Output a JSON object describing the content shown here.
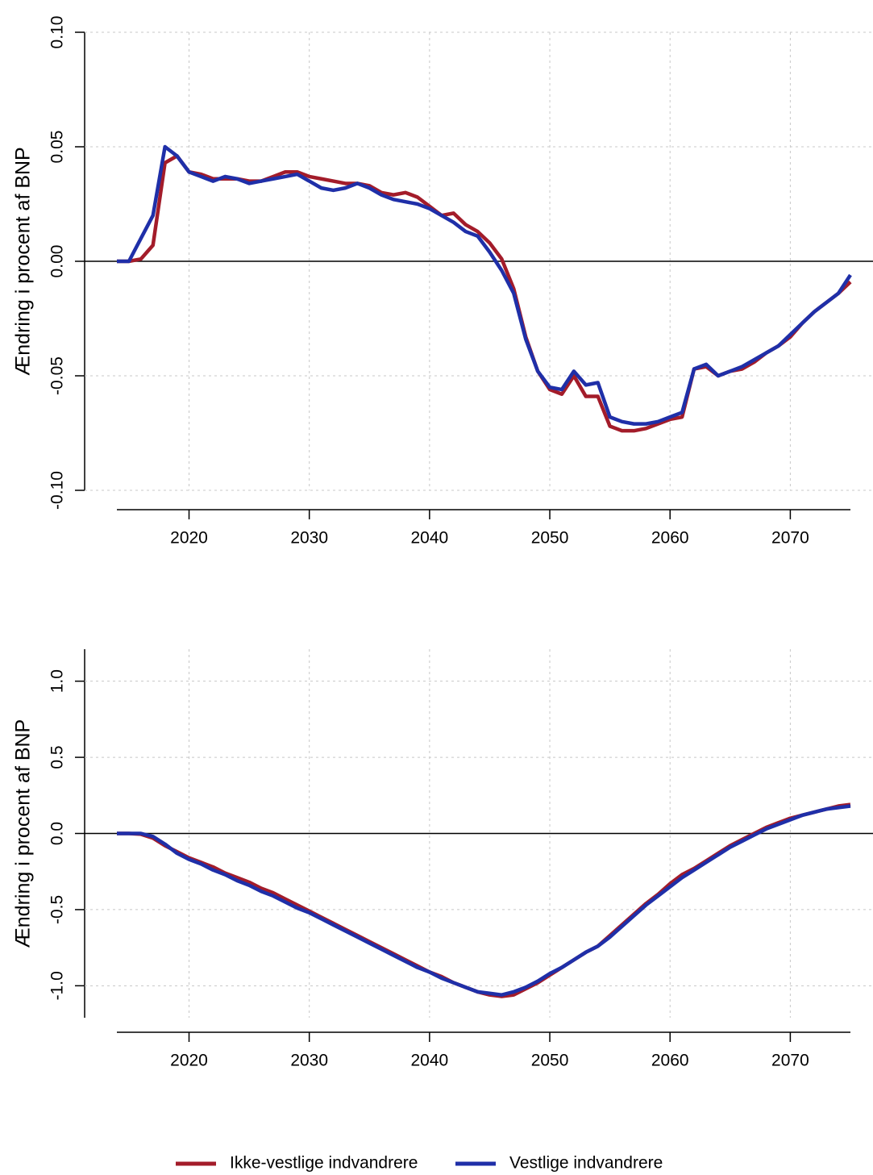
{
  "chart_data": [
    {
      "type": "line",
      "ylabel": "Ændring i procent af BNP",
      "grid": true,
      "hline": 0,
      "xlim": [
        2014,
        2075
      ],
      "xticks": [
        2020,
        2030,
        2040,
        2050,
        2060,
        2070
      ],
      "ylim": [
        -0.1,
        0.1
      ],
      "yticks": [
        {
          "value": -0.1,
          "label": "-0.10"
        },
        {
          "value": -0.05,
          "label": "-0.05"
        },
        {
          "value": 0,
          "label": "0.00"
        },
        {
          "value": 0.05,
          "label": "0.05"
        },
        {
          "value": 0.1,
          "label": "0.10"
        }
      ],
      "x": [
        2014,
        2015,
        2016,
        2017,
        2018,
        2019,
        2020,
        2021,
        2022,
        2023,
        2024,
        2025,
        2026,
        2027,
        2028,
        2029,
        2030,
        2031,
        2032,
        2033,
        2034,
        2035,
        2036,
        2037,
        2038,
        2039,
        2040,
        2041,
        2042,
        2043,
        2044,
        2045,
        2046,
        2047,
        2048,
        2049,
        2050,
        2051,
        2052,
        2053,
        2054,
        2055,
        2056,
        2057,
        2058,
        2059,
        2060,
        2061,
        2062,
        2063,
        2064,
        2065,
        2066,
        2067,
        2068,
        2069,
        2070,
        2071,
        2072,
        2073,
        2074,
        2075
      ],
      "series": [
        {
          "values": [
            0,
            0,
            0.001,
            0.007,
            0.043,
            0.046,
            0.039,
            0.038,
            0.036,
            0.036,
            0.036,
            0.035,
            0.035,
            0.037,
            0.039,
            0.039,
            0.037,
            0.036,
            0.035,
            0.034,
            0.034,
            0.033,
            0.03,
            0.029,
            0.03,
            0.028,
            0.024,
            0.02,
            0.021,
            0.016,
            0.013,
            0.008,
            0.001,
            -0.012,
            -0.033,
            -0.048,
            -0.056,
            -0.058,
            -0.05,
            -0.059,
            -0.059,
            -0.072,
            -0.074,
            -0.074,
            -0.073,
            -0.071,
            -0.069,
            -0.068,
            -0.047,
            -0.046,
            -0.05,
            -0.048,
            -0.047,
            -0.044,
            -0.04,
            -0.037,
            -0.033,
            -0.027,
            -0.022,
            -0.018,
            -0.014,
            -0.009
          ]
        },
        {
          "values": [
            0,
            0,
            0.01,
            0.02,
            0.05,
            0.046,
            0.039,
            0.037,
            0.035,
            0.037,
            0.036,
            0.034,
            0.035,
            0.036,
            0.037,
            0.038,
            0.035,
            0.032,
            0.031,
            0.032,
            0.034,
            0.032,
            0.029,
            0.027,
            0.026,
            0.025,
            0.023,
            0.02,
            0.017,
            0.013,
            0.011,
            0.004,
            -0.004,
            -0.014,
            -0.034,
            -0.048,
            -0.055,
            -0.056,
            -0.048,
            -0.054,
            -0.053,
            -0.068,
            -0.07,
            -0.071,
            -0.071,
            -0.07,
            -0.068,
            -0.066,
            -0.047,
            -0.045,
            -0.05,
            -0.048,
            -0.046,
            -0.043,
            -0.04,
            -0.037,
            -0.032,
            -0.027,
            -0.022,
            -0.018,
            -0.014,
            -0.006
          ]
        }
      ]
    },
    {
      "type": "line",
      "ylabel": "Ændring i procent af BNP",
      "grid": true,
      "hline": 0,
      "xlim": [
        2014,
        2075
      ],
      "xticks": [
        2020,
        2030,
        2040,
        2050,
        2060,
        2070
      ],
      "ylim": [
        -1.21,
        1.21
      ],
      "yticks": [
        {
          "value": -1,
          "label": "-1.0"
        },
        {
          "value": -0.5,
          "label": "-0.5"
        },
        {
          "value": 0,
          "label": "0.0"
        },
        {
          "value": 0.5,
          "label": "0.5"
        },
        {
          "value": 1,
          "label": "1.0"
        }
      ],
      "x": [
        2014,
        2015,
        2016,
        2017,
        2018,
        2019,
        2020,
        2021,
        2022,
        2023,
        2024,
        2025,
        2026,
        2027,
        2028,
        2029,
        2030,
        2031,
        2032,
        2033,
        2034,
        2035,
        2036,
        2037,
        2038,
        2039,
        2040,
        2041,
        2042,
        2043,
        2044,
        2045,
        2046,
        2047,
        2048,
        2049,
        2050,
        2051,
        2052,
        2053,
        2054,
        2055,
        2056,
        2057,
        2058,
        2059,
        2060,
        2061,
        2062,
        2063,
        2064,
        2065,
        2066,
        2067,
        2068,
        2069,
        2070,
        2071,
        2072,
        2073,
        2074,
        2075
      ],
      "series": [
        {
          "values": [
            0,
            0,
            -0.005,
            -0.03,
            -0.08,
            -0.12,
            -0.16,
            -0.19,
            -0.22,
            -0.26,
            -0.29,
            -0.32,
            -0.36,
            -0.39,
            -0.43,
            -0.47,
            -0.51,
            -0.55,
            -0.59,
            -0.63,
            -0.67,
            -0.71,
            -0.75,
            -0.79,
            -0.83,
            -0.87,
            -0.91,
            -0.94,
            -0.98,
            -1.01,
            -1.04,
            -1.06,
            -1.07,
            -1.06,
            -1.02,
            -0.98,
            -0.93,
            -0.88,
            -0.83,
            -0.78,
            -0.74,
            -0.67,
            -0.6,
            -0.53,
            -0.46,
            -0.4,
            -0.33,
            -0.27,
            -0.23,
            -0.18,
            -0.13,
            -0.08,
            -0.04,
            0,
            0.04,
            0.07,
            0.1,
            0.12,
            0.14,
            0.16,
            0.18,
            0.19
          ]
        },
        {
          "values": [
            0,
            0,
            0,
            -0.02,
            -0.07,
            -0.13,
            -0.17,
            -0.2,
            -0.24,
            -0.27,
            -0.31,
            -0.34,
            -0.38,
            -0.41,
            -0.45,
            -0.49,
            -0.52,
            -0.56,
            -0.6,
            -0.64,
            -0.68,
            -0.72,
            -0.76,
            -0.8,
            -0.84,
            -0.88,
            -0.91,
            -0.95,
            -0.98,
            -1.01,
            -1.04,
            -1.05,
            -1.06,
            -1.04,
            -1.01,
            -0.97,
            -0.92,
            -0.88,
            -0.83,
            -0.78,
            -0.74,
            -0.68,
            -0.61,
            -0.54,
            -0.47,
            -0.41,
            -0.35,
            -0.29,
            -0.24,
            -0.19,
            -0.14,
            -0.09,
            -0.05,
            -0.01,
            0.03,
            0.06,
            0.09,
            0.12,
            0.14,
            0.16,
            0.17,
            0.18
          ]
        }
      ]
    }
  ],
  "legend": {
    "position": "bottom",
    "items": [
      {
        "name": "Ikke-vestlige indvandrere",
        "color": "#a31c2a"
      },
      {
        "name": "Vestlige indvandrere",
        "color": "#1f2fa8"
      }
    ]
  }
}
